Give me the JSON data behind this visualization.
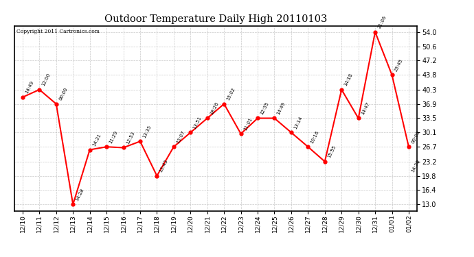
{
  "title": "Outdoor Temperature Daily High 20110103",
  "copyright": "Copyright 2011 Cartronics.com",
  "x_labels": [
    "12/10",
    "12/11",
    "12/12",
    "12/13",
    "12/14",
    "12/15",
    "12/16",
    "12/17",
    "12/18",
    "12/19",
    "12/20",
    "12/21",
    "12/22",
    "12/23",
    "12/24",
    "12/25",
    "12/26",
    "12/27",
    "12/28",
    "12/29",
    "12/30",
    "12/31",
    "01/01",
    "01/02"
  ],
  "y_values": [
    38.5,
    40.3,
    36.9,
    13.0,
    26.0,
    26.7,
    26.5,
    28.0,
    19.8,
    26.7,
    30.1,
    33.5,
    36.9,
    29.8,
    33.5,
    33.5,
    30.1,
    26.7,
    23.2,
    40.3,
    33.5,
    54.0,
    43.8,
    26.7
  ],
  "time_labels": [
    "14:49",
    "12:00",
    "00:00",
    "14:28",
    "14:21",
    "11:29",
    "12:53",
    "13:35",
    "13:43",
    "13:07",
    "13:51",
    "18:26",
    "15:02",
    "11:01",
    "12:35",
    "14:49",
    "13:14",
    "10:16",
    "15:55",
    "14:18",
    "14:47",
    "21:06",
    "23:45",
    "00:00"
  ],
  "last_label": "14:20",
  "y_ticks": [
    13.0,
    16.4,
    19.8,
    23.2,
    26.7,
    30.1,
    33.5,
    36.9,
    40.3,
    43.8,
    47.2,
    50.6,
    54.0
  ],
  "ylim": [
    11.5,
    55.5
  ],
  "line_color": "red",
  "marker_color": "red",
  "bg_color": "#ffffff",
  "grid_color": "#bbbbbb"
}
